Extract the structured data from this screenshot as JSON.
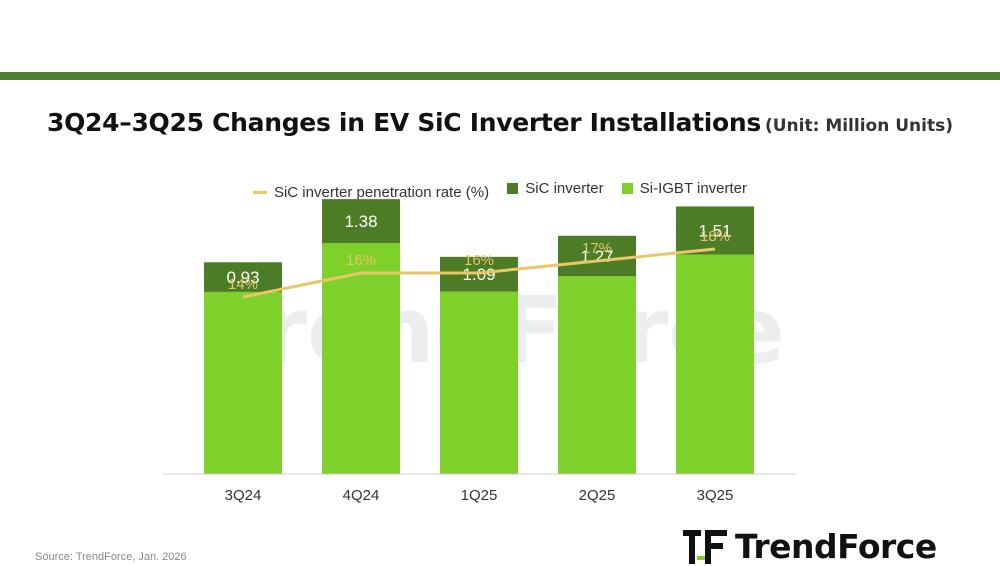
{
  "header": {
    "title": "3Q24–3Q25 Changes in EV SiC Inverter Installations",
    "unit": "(Unit: Million Units)"
  },
  "colors": {
    "accent_bar": "#4f7f35",
    "sic": "#4c7c26",
    "si_igbt": "#7ed12a",
    "rate_line": "#e9c766",
    "rate_label": "#e6c46a"
  },
  "legend": {
    "rate": "SiC inverter penetration rate (%)",
    "sic": "SiC inverter",
    "igbt": "Si-IGBT inverter"
  },
  "chart_data": {
    "type": "bar",
    "stacked": true,
    "categories": [
      "3Q24",
      "4Q24",
      "1Q25",
      "2Q25",
      "3Q25"
    ],
    "series": [
      {
        "name": "Si-IGBT inverter",
        "values": [
          5.71,
          7.24,
          5.72,
          6.2,
          6.88
        ]
      },
      {
        "name": "SiC inverter",
        "values": [
          0.93,
          1.38,
          1.09,
          1.27,
          1.51
        ]
      }
    ],
    "line_series": {
      "name": "SiC inverter penetration rate (%)",
      "values": [
        14,
        16,
        16,
        17,
        18
      ],
      "labels": [
        "14%",
        "16%",
        "16%",
        "17%",
        "18%"
      ]
    },
    "bar_labels": [
      "0.93",
      "1.38",
      "1.09",
      "1.27",
      "1.51"
    ],
    "ylim": [
      0,
      9
    ],
    "grid": false,
    "legend_position": "top-center"
  },
  "watermark": "TrendForce",
  "footer": {
    "source": "Source: TrendForce, Jan. 2026",
    "logo": "TrendForce"
  }
}
